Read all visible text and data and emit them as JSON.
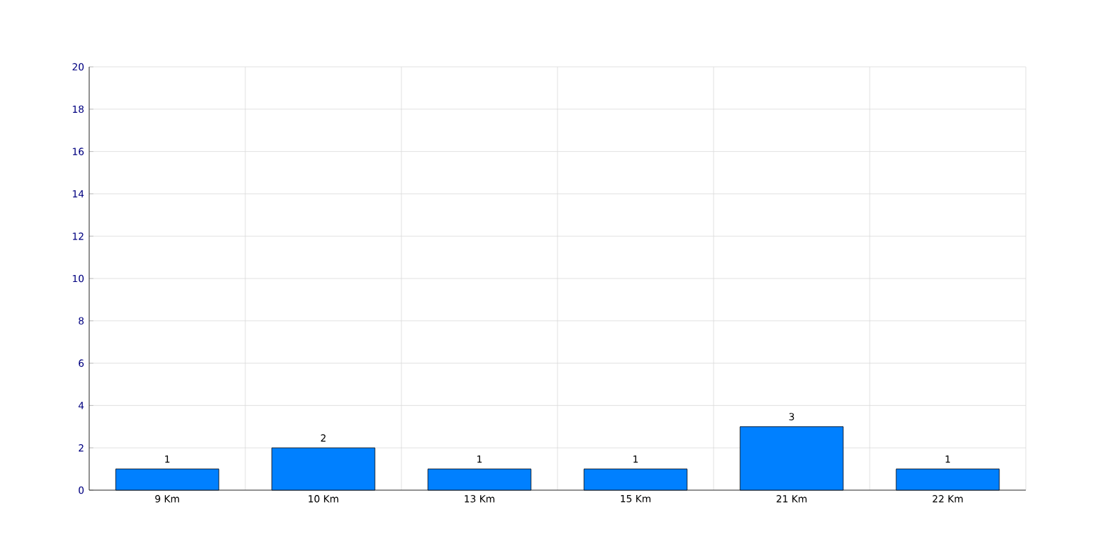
{
  "chart_data": {
    "type": "bar",
    "categories": [
      "9 Km",
      "10 Km",
      "13 Km",
      "15 Km",
      "21 Km",
      "22 Km"
    ],
    "values": [
      1,
      2,
      1,
      1,
      3,
      1
    ],
    "color": "#0080ff",
    "ylim": [
      0,
      20
    ],
    "yticks": [
      0,
      2,
      4,
      6,
      8,
      10,
      12,
      14,
      16,
      18,
      20
    ],
    "grid": true,
    "data_labels": true
  }
}
